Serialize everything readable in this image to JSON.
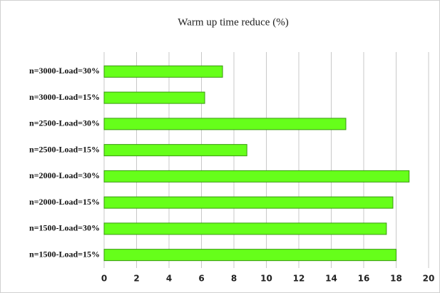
{
  "chart_data": {
    "type": "bar",
    "orientation": "horizontal",
    "title": "Warm up time reduce (%)",
    "categories": [
      "n=3000-Load=30%",
      "n=3000-Load=15%",
      "n=2500-Load=30%",
      "n=2500-Load=15%",
      "n=2000-Load=30%",
      "n=2000-Load=15%",
      "n=1500-Load=30%",
      "n=1500-Load=15%"
    ],
    "values": [
      7.3,
      6.2,
      14.9,
      8.8,
      18.8,
      17.8,
      17.4,
      18.0
    ],
    "color": "#66ff1a",
    "xlim": [
      0,
      20
    ],
    "xticks": [
      0,
      2,
      4,
      6,
      8,
      10,
      12,
      14,
      16,
      18,
      20
    ],
    "grid": true
  }
}
